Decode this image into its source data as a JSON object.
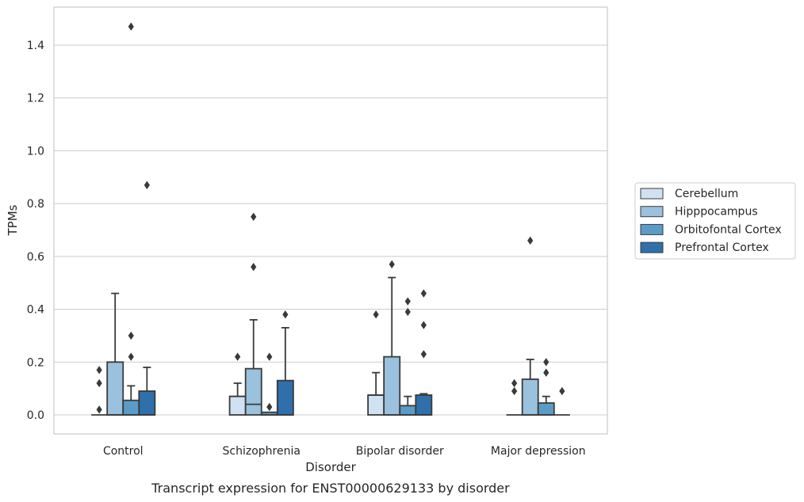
{
  "chart_data": {
    "type": "boxplot",
    "title": "",
    "caption": "Transcript expression for ENST00000629133 by disorder",
    "xlabel": "Disorder",
    "ylabel": "TPMs",
    "ylim": [
      -0.07,
      1.55
    ],
    "yticks": [
      0.0,
      0.2,
      0.4,
      0.6,
      0.8,
      1.0,
      1.2,
      1.4
    ],
    "ytick_labels": [
      "0.0",
      "0.2",
      "0.4",
      "0.6",
      "0.8",
      "1.0",
      "1.2",
      "1.4"
    ],
    "grid": "y",
    "legend_position": "right",
    "categories": [
      "Control",
      "Schizophrenia",
      "Bipolar disorder",
      "Major depression"
    ],
    "series": [
      {
        "name": "Cerebellum",
        "color": "#d0e1f2",
        "boxes": [
          {
            "q1": 0,
            "median": 0,
            "q3": 0,
            "whislo": 0,
            "whishi": 0,
            "fliers": [
              0.02,
              0.12,
              0.17
            ]
          },
          {
            "q1": 0,
            "median": 0.07,
            "q3": 0.07,
            "whislo": 0,
            "whishi": 0.12,
            "fliers": [
              0.22
            ]
          },
          {
            "q1": 0,
            "median": 0.075,
            "q3": 0.075,
            "whislo": 0,
            "whishi": 0.16,
            "fliers": [
              0.38
            ]
          },
          {
            "q1": 0,
            "median": 0,
            "q3": 0,
            "whislo": 0,
            "whishi": 0,
            "fliers": [
              0.09,
              0.12
            ]
          }
        ]
      },
      {
        "name": "Hipppocampus",
        "color": "#9ac1dd",
        "boxes": [
          {
            "q1": 0,
            "median": 0,
            "q3": 0.2,
            "whislo": 0,
            "whishi": 0.46,
            "fliers": []
          },
          {
            "q1": 0,
            "median": 0.04,
            "q3": 0.175,
            "whislo": 0,
            "whishi": 0.36,
            "fliers": [
              0.56,
              0.75
            ]
          },
          {
            "q1": 0,
            "median": 0,
            "q3": 0.22,
            "whislo": 0,
            "whishi": 0.52,
            "fliers": [
              0.57
            ]
          },
          {
            "q1": 0,
            "median": 0,
            "q3": 0.135,
            "whislo": 0,
            "whishi": 0.21,
            "fliers": [
              0.66
            ]
          }
        ]
      },
      {
        "name": "Orbitofontal Cortex",
        "color": "#5b9bc8",
        "boxes": [
          {
            "q1": 0,
            "median": 0,
            "q3": 0.055,
            "whislo": 0,
            "whishi": 0.11,
            "fliers": [
              0.22,
              0.3,
              1.47
            ]
          },
          {
            "q1": 0,
            "median": 0,
            "q3": 0.01,
            "whislo": 0,
            "whishi": 0.01,
            "fliers": [
              0.03,
              0.22
            ]
          },
          {
            "q1": 0,
            "median": 0,
            "q3": 0.035,
            "whislo": 0,
            "whishi": 0.07,
            "fliers": [
              0.39,
              0.43
            ]
          },
          {
            "q1": 0,
            "median": 0,
            "q3": 0.045,
            "whislo": 0,
            "whishi": 0.07,
            "fliers": [
              0.16,
              0.2
            ]
          }
        ]
      },
      {
        "name": "Prefrontal Cortex",
        "color": "#2e6fac",
        "boxes": [
          {
            "q1": 0,
            "median": 0,
            "q3": 0.09,
            "whislo": 0,
            "whishi": 0.18,
            "fliers": [
              0.87
            ]
          },
          {
            "q1": 0,
            "median": 0,
            "q3": 0.13,
            "whislo": 0,
            "whishi": 0.33,
            "fliers": [
              0.38
            ]
          },
          {
            "q1": 0,
            "median": 0,
            "q3": 0.075,
            "whislo": 0,
            "whishi": 0.08,
            "fliers": [
              0.23,
              0.34,
              0.46
            ]
          },
          {
            "q1": 0,
            "median": 0,
            "q3": 0,
            "whislo": 0,
            "whishi": 0,
            "fliers": [
              0.09
            ]
          }
        ]
      }
    ]
  }
}
